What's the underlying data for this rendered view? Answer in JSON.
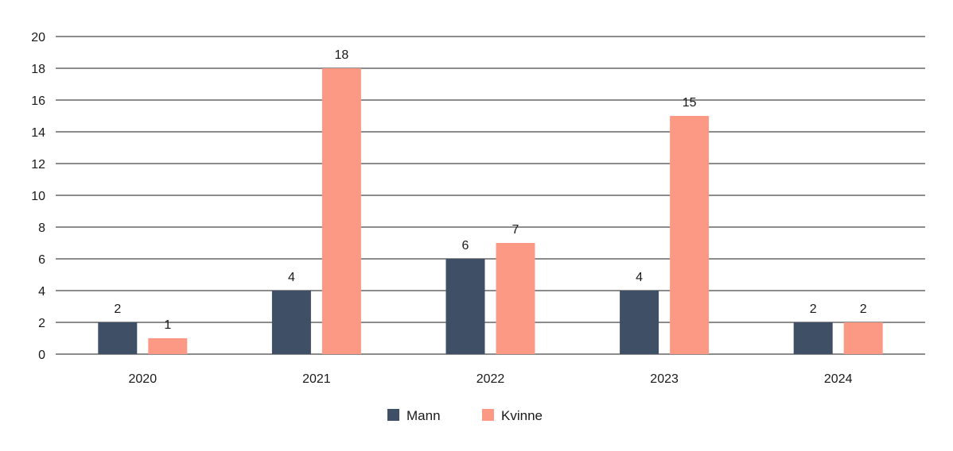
{
  "chart_data": {
    "type": "bar",
    "title": "",
    "xlabel": "",
    "ylabel": "",
    "categories": [
      "2020",
      "2021",
      "2022",
      "2023",
      "2024"
    ],
    "series": [
      {
        "name": "Mann",
        "color": "#3f5066",
        "values": [
          2,
          4,
          6,
          4,
          2
        ]
      },
      {
        "name": "Kvinne",
        "color": "#fc9985",
        "values": [
          1,
          18,
          7,
          15,
          2
        ]
      }
    ],
    "ylim": [
      0,
      20
    ],
    "yticks": [
      0,
      2,
      4,
      6,
      8,
      10,
      12,
      14,
      16,
      18,
      20
    ],
    "grid": true,
    "gridline_color": "#1a1a1a",
    "data_labels": true,
    "legend_position": "bottom-center"
  }
}
